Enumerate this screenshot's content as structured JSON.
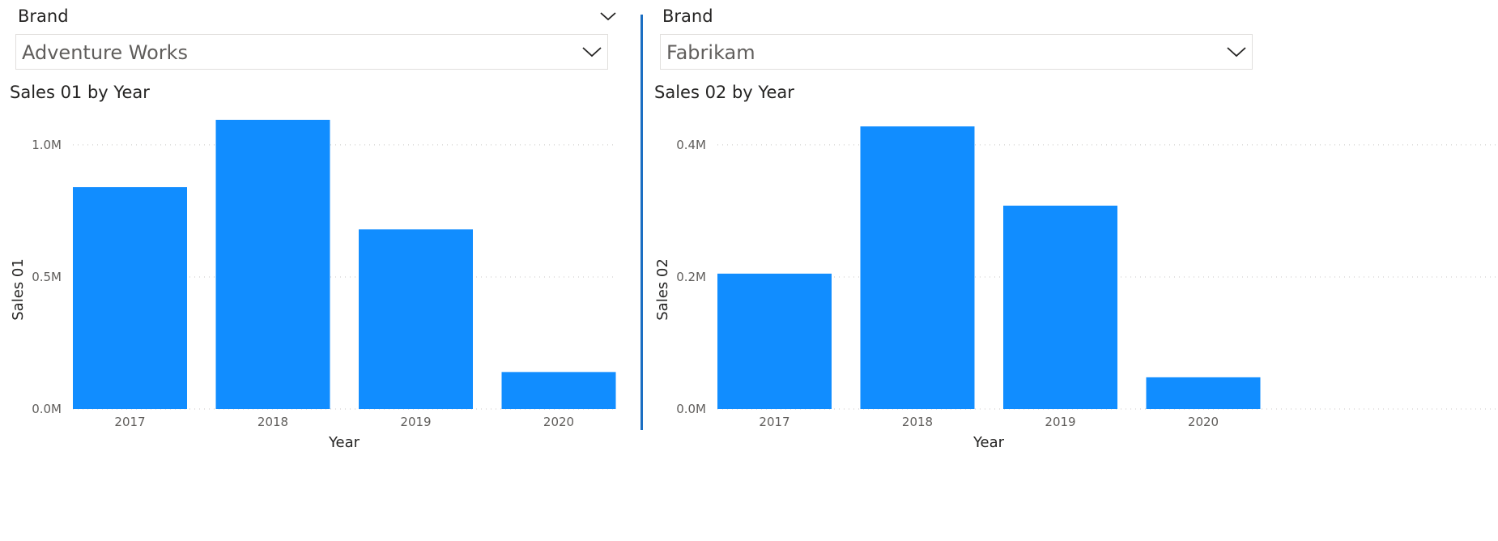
{
  "panels": [
    {
      "slicer": {
        "title": "Brand",
        "value": "Adventure Works"
      },
      "chart_title": "Sales 01 by Year"
    },
    {
      "slicer": {
        "title": "Brand",
        "value": "Fabrikam"
      },
      "chart_title": "Sales 02 by Year"
    }
  ],
  "icons": {
    "dropdown": "chevron-down-icon"
  },
  "colors": {
    "bar": "#118dff",
    "divider": "#1b6ec2",
    "gridline": "#c8c6c4"
  },
  "chart_data": [
    {
      "type": "bar",
      "title": "Sales 01 by Year",
      "xlabel": "Year",
      "ylabel": "Sales 01",
      "categories": [
        "2017",
        "2018",
        "2019",
        "2020"
      ],
      "values": [
        840000,
        1095000,
        680000,
        140000
      ],
      "ylim": [
        0,
        1150000
      ],
      "yticks": [
        0,
        500000,
        1000000
      ],
      "ytick_labels": [
        "0.0M",
        "0.5M",
        "1.0M"
      ],
      "grid": true
    },
    {
      "type": "bar",
      "title": "Sales 02 by Year",
      "xlabel": "Year",
      "ylabel": "Sales 02",
      "categories": [
        "2017",
        "2018",
        "2019",
        "2020"
      ],
      "values": [
        205000,
        428000,
        308000,
        48000
      ],
      "ylim": [
        0,
        0.46
      ],
      "yticks": [
        0,
        0.2,
        0.4
      ],
      "ytick_labels": [
        "0.0M",
        "0.2M",
        "0.4M"
      ],
      "grid": true
    }
  ]
}
